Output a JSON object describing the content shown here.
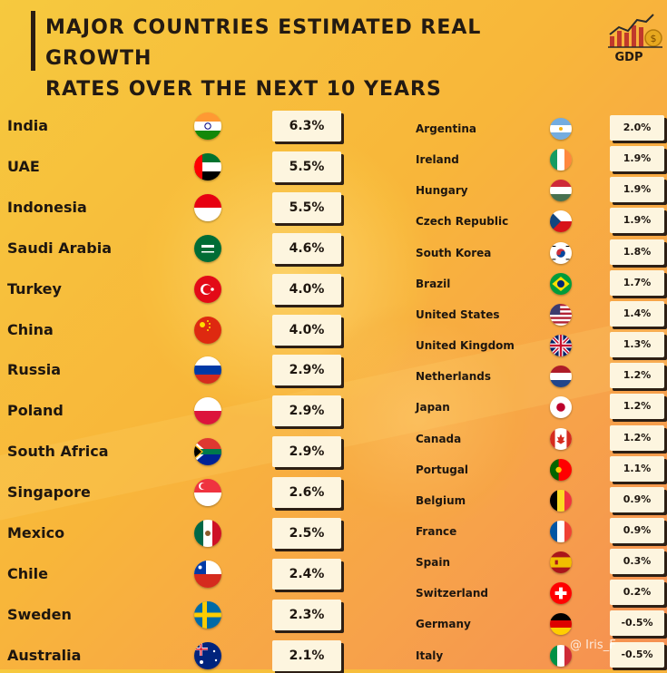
{
  "title_line1": "MAJOR COUNTRIES ESTIMATED REAL GROWTH",
  "title_line2": "RATES OVER THE NEXT 10 YEARS",
  "logo_label": "GDP",
  "watermark": "@ Iris_F",
  "colors": {
    "title": "#231a12",
    "box_fill": "#fdf5df",
    "box_shadow": "#2d1f14"
  },
  "chart_data": {
    "type": "table",
    "title": "MAJOR COUNTRIES ESTIMATED REAL GROWTH RATES OVER THE NEXT 10 YEARS",
    "columns": [
      {
        "rows": [
          {
            "country": "India",
            "value": "6.3%",
            "flag": "india-flag-icon"
          },
          {
            "country": "UAE",
            "value": "5.5%",
            "flag": "uae-flag-icon"
          },
          {
            "country": "Indonesia",
            "value": "5.5%",
            "flag": "indonesia-flag-icon"
          },
          {
            "country": "Saudi Arabia",
            "value": "4.6%",
            "flag": "saudi-arabia-flag-icon"
          },
          {
            "country": "Turkey",
            "value": "4.0%",
            "flag": "turkey-flag-icon"
          },
          {
            "country": "China",
            "value": "4.0%",
            "flag": "china-flag-icon"
          },
          {
            "country": "Russia",
            "value": "2.9%",
            "flag": "russia-flag-icon"
          },
          {
            "country": "Poland",
            "value": "2.9%",
            "flag": "poland-flag-icon"
          },
          {
            "country": "South Africa",
            "value": "2.9%",
            "flag": "south-africa-flag-icon"
          },
          {
            "country": "Singapore",
            "value": "2.6%",
            "flag": "singapore-flag-icon"
          },
          {
            "country": "Mexico",
            "value": "2.5%",
            "flag": "mexico-flag-icon"
          },
          {
            "country": "Chile",
            "value": "2.4%",
            "flag": "chile-flag-icon"
          },
          {
            "country": "Sweden",
            "value": "2.3%",
            "flag": "sweden-flag-icon"
          },
          {
            "country": "Australia",
            "value": "2.1%",
            "flag": "australia-flag-icon"
          }
        ]
      },
      {
        "rows": [
          {
            "country": "Argentina",
            "value": "2.0%",
            "flag": "argentina-flag-icon"
          },
          {
            "country": "Ireland",
            "value": "1.9%",
            "flag": "ireland-flag-icon"
          },
          {
            "country": "Hungary",
            "value": "1.9%",
            "flag": "hungary-flag-icon"
          },
          {
            "country": "Czech Republic",
            "value": "1.9%",
            "flag": "czech-republic-flag-icon"
          },
          {
            "country": "South Korea",
            "value": "1.8%",
            "flag": "south-korea-flag-icon"
          },
          {
            "country": "Brazil",
            "value": "1.7%",
            "flag": "brazil-flag-icon"
          },
          {
            "country": "United States",
            "value": "1.4%",
            "flag": "united-states-flag-icon"
          },
          {
            "country": "United Kingdom",
            "value": "1.3%",
            "flag": "united-kingdom-flag-icon"
          },
          {
            "country": "Netherlands",
            "value": "1.2%",
            "flag": "netherlands-flag-icon"
          },
          {
            "country": "Japan",
            "value": "1.2%",
            "flag": "japan-flag-icon"
          },
          {
            "country": "Canada",
            "value": "1.2%",
            "flag": "canada-flag-icon"
          },
          {
            "country": "Portugal",
            "value": "1.1%",
            "flag": "portugal-flag-icon"
          },
          {
            "country": "Belgium",
            "value": "0.9%",
            "flag": "belgium-flag-icon"
          },
          {
            "country": "France",
            "value": "0.9%",
            "flag": "france-flag-icon"
          },
          {
            "country": "Spain",
            "value": "0.3%",
            "flag": "spain-flag-icon"
          },
          {
            "country": "Switzerland",
            "value": "0.2%",
            "flag": "switzerland-flag-icon"
          },
          {
            "country": "Germany",
            "value": "-0.5%",
            "flag": "germany-flag-icon"
          },
          {
            "country": "Italy",
            "value": "-0.5%",
            "flag": "italy-flag-icon"
          }
        ]
      }
    ]
  }
}
